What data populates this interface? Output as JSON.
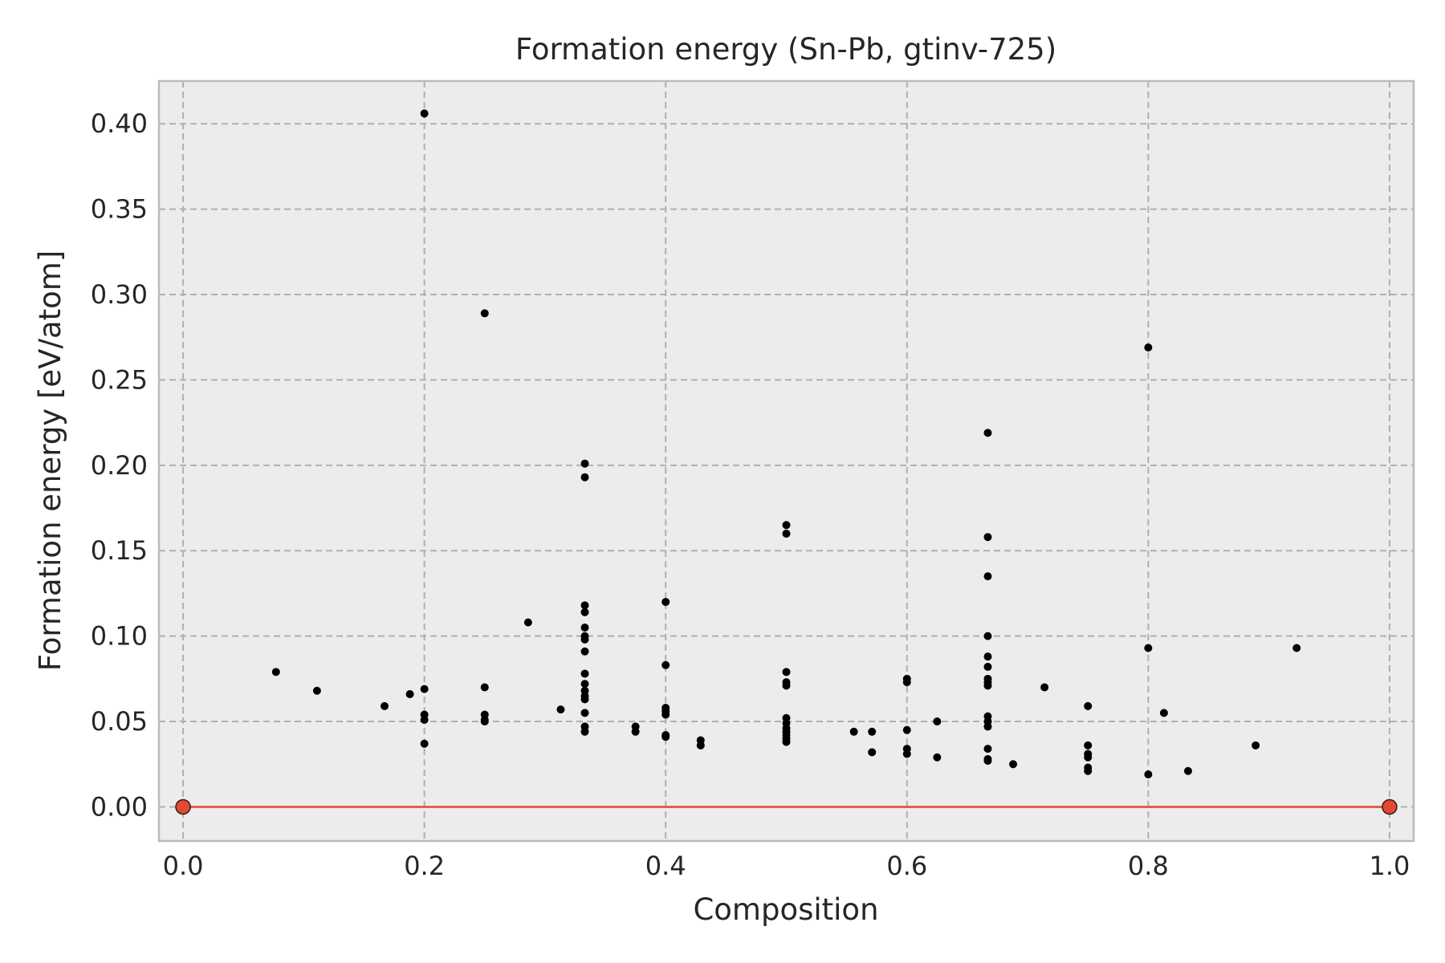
{
  "chart_data": {
    "type": "scatter",
    "title": "Formation energy (Sn-Pb, gtinv-725)",
    "xlabel": "Composition",
    "ylabel": "Formation energy [eV/atom]",
    "xlim": [
      -0.02,
      1.02
    ],
    "ylim": [
      -0.02,
      0.425
    ],
    "x_ticks": [
      0.0,
      0.2,
      0.4,
      0.6,
      0.8,
      1.0
    ],
    "x_tick_labels": [
      "0.0",
      "0.2",
      "0.4",
      "0.6",
      "0.8",
      "1.0"
    ],
    "y_ticks": [
      0.0,
      0.05,
      0.1,
      0.15,
      0.2,
      0.25,
      0.3,
      0.35,
      0.4
    ],
    "y_tick_labels": [
      "0.00",
      "0.05",
      "0.10",
      "0.15",
      "0.20",
      "0.25",
      "0.30",
      "0.35",
      "0.40"
    ],
    "grid": true,
    "colors": {
      "plot_background": "#ececec",
      "grid": "#b0b0b0",
      "frame": "#bcbcbc",
      "points": "#000000",
      "hull": "#e24a33",
      "hull_marker_edge": "#3a1a12"
    },
    "series": [
      {
        "marker": "dot",
        "color": "#000000",
        "points": [
          [
            0.077,
            0.079
          ],
          [
            0.111,
            0.068
          ],
          [
            0.167,
            0.059
          ],
          [
            0.188,
            0.066
          ],
          [
            0.2,
            0.406
          ],
          [
            0.2,
            0.069
          ],
          [
            0.2,
            0.054
          ],
          [
            0.2,
            0.051
          ],
          [
            0.2,
            0.037
          ],
          [
            0.25,
            0.289
          ],
          [
            0.25,
            0.07
          ],
          [
            0.25,
            0.054
          ],
          [
            0.25,
            0.051
          ],
          [
            0.25,
            0.05
          ],
          [
            0.286,
            0.108
          ],
          [
            0.313,
            0.057
          ],
          [
            0.333,
            0.201
          ],
          [
            0.333,
            0.193
          ],
          [
            0.333,
            0.118
          ],
          [
            0.333,
            0.114
          ],
          [
            0.333,
            0.105
          ],
          [
            0.333,
            0.1
          ],
          [
            0.333,
            0.098
          ],
          [
            0.333,
            0.091
          ],
          [
            0.333,
            0.078
          ],
          [
            0.333,
            0.072
          ],
          [
            0.333,
            0.068
          ],
          [
            0.333,
            0.065
          ],
          [
            0.333,
            0.063
          ],
          [
            0.333,
            0.055
          ],
          [
            0.333,
            0.047
          ],
          [
            0.333,
            0.044
          ],
          [
            0.375,
            0.047
          ],
          [
            0.375,
            0.044
          ],
          [
            0.4,
            0.12
          ],
          [
            0.4,
            0.083
          ],
          [
            0.4,
            0.058
          ],
          [
            0.4,
            0.056
          ],
          [
            0.4,
            0.054
          ],
          [
            0.4,
            0.042
          ],
          [
            0.4,
            0.041
          ],
          [
            0.429,
            0.039
          ],
          [
            0.429,
            0.036
          ],
          [
            0.5,
            0.165
          ],
          [
            0.5,
            0.16
          ],
          [
            0.5,
            0.079
          ],
          [
            0.5,
            0.073
          ],
          [
            0.5,
            0.071
          ],
          [
            0.5,
            0.052
          ],
          [
            0.5,
            0.049
          ],
          [
            0.5,
            0.046
          ],
          [
            0.5,
            0.044
          ],
          [
            0.5,
            0.042
          ],
          [
            0.5,
            0.04
          ],
          [
            0.5,
            0.038
          ],
          [
            0.556,
            0.044
          ],
          [
            0.571,
            0.044
          ],
          [
            0.571,
            0.032
          ],
          [
            0.6,
            0.075
          ],
          [
            0.6,
            0.073
          ],
          [
            0.6,
            0.045
          ],
          [
            0.6,
            0.034
          ],
          [
            0.6,
            0.031
          ],
          [
            0.625,
            0.05
          ],
          [
            0.625,
            0.029
          ],
          [
            0.667,
            0.219
          ],
          [
            0.667,
            0.158
          ],
          [
            0.667,
            0.135
          ],
          [
            0.667,
            0.1
          ],
          [
            0.667,
            0.088
          ],
          [
            0.667,
            0.082
          ],
          [
            0.667,
            0.075
          ],
          [
            0.667,
            0.073
          ],
          [
            0.667,
            0.071
          ],
          [
            0.667,
            0.053
          ],
          [
            0.667,
            0.05
          ],
          [
            0.667,
            0.047
          ],
          [
            0.667,
            0.034
          ],
          [
            0.667,
            0.028
          ],
          [
            0.667,
            0.027
          ],
          [
            0.688,
            0.025
          ],
          [
            0.714,
            0.07
          ],
          [
            0.75,
            0.059
          ],
          [
            0.75,
            0.036
          ],
          [
            0.75,
            0.031
          ],
          [
            0.75,
            0.029
          ],
          [
            0.75,
            0.023
          ],
          [
            0.75,
            0.021
          ],
          [
            0.8,
            0.269
          ],
          [
            0.8,
            0.093
          ],
          [
            0.8,
            0.019
          ],
          [
            0.813,
            0.055
          ],
          [
            0.833,
            0.021
          ],
          [
            0.889,
            0.036
          ],
          [
            0.923,
            0.093
          ]
        ]
      },
      {
        "marker": "circle",
        "color": "#e24a33",
        "line": true,
        "points": [
          [
            0.0,
            0.0
          ],
          [
            1.0,
            0.0
          ]
        ]
      }
    ]
  }
}
